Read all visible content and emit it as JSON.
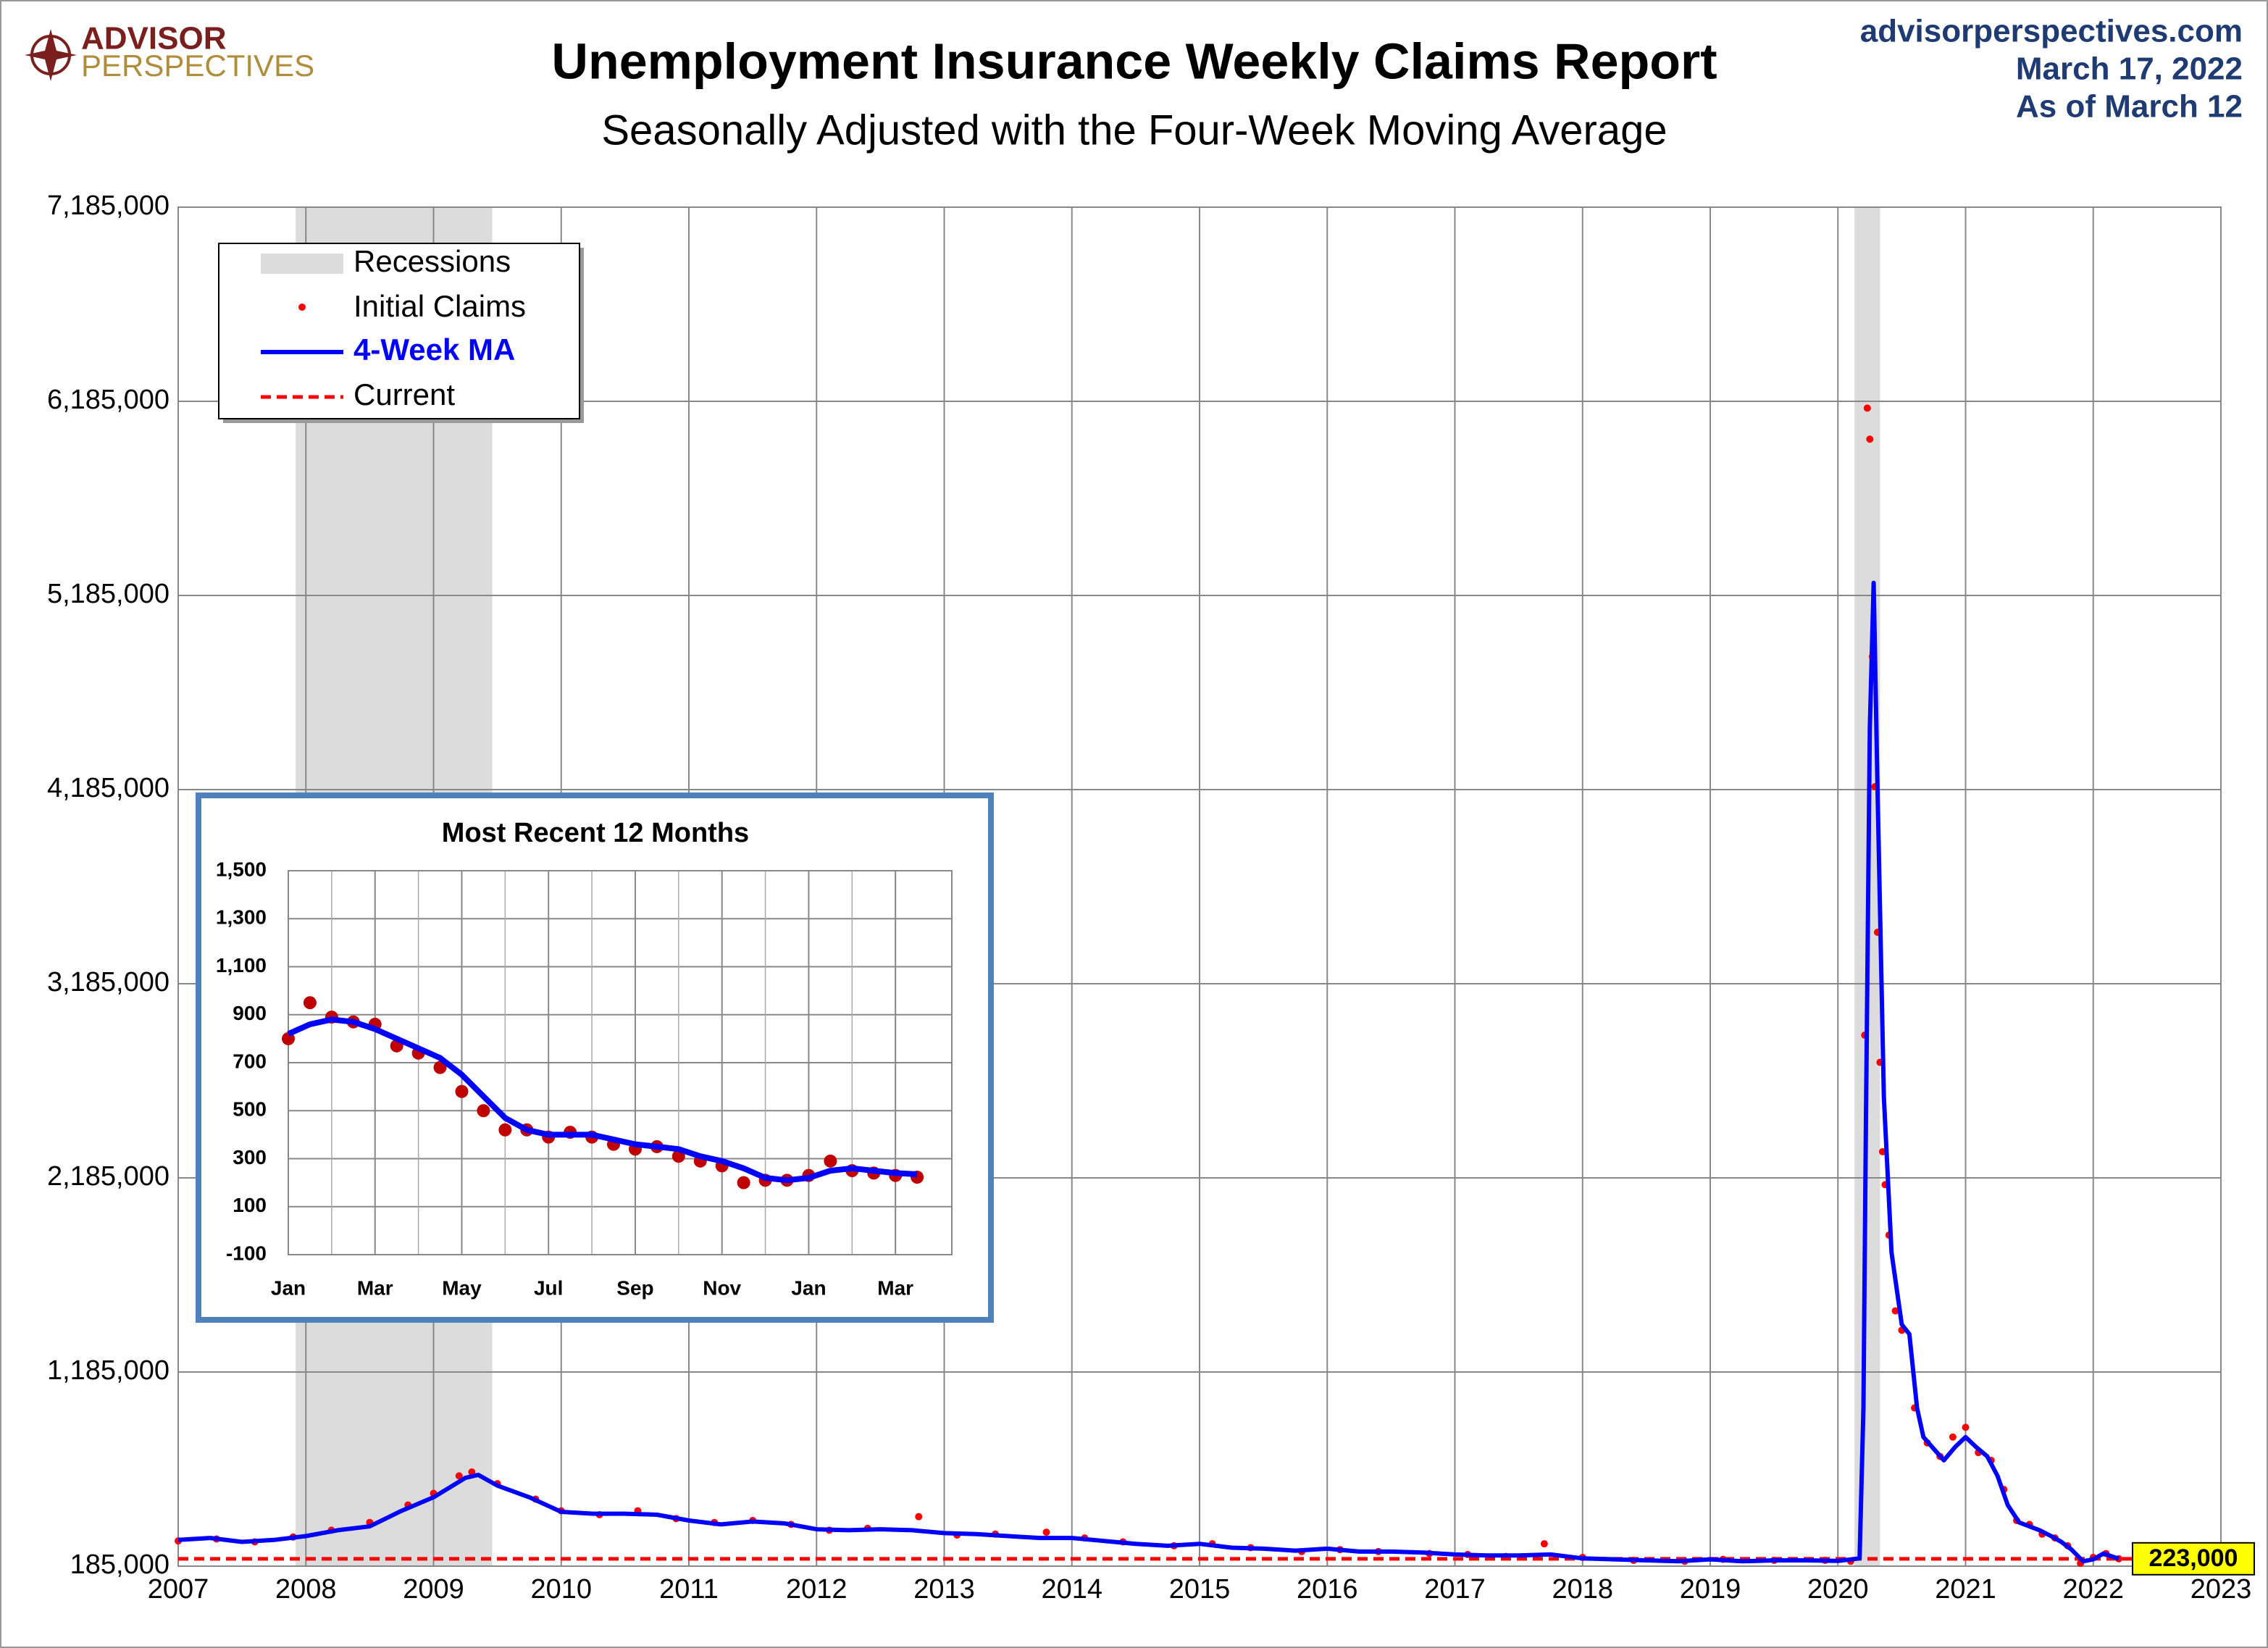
{
  "header": {
    "logo_top": "ADVISOR",
    "logo_bottom": "PERSPECTIVES",
    "site": "advisorperspectives.com",
    "date": "March 17, 2022",
    "as_of": "As of March 12"
  },
  "chart_data": [
    {
      "type": "line",
      "title": "Unemployment Insurance Weekly Claims Report",
      "subtitle": "Seasonally Adjusted with the Four-Week Moving Average",
      "xlim": [
        2007,
        2023
      ],
      "xticks": [
        2007,
        2008,
        2009,
        2010,
        2011,
        2012,
        2013,
        2014,
        2015,
        2016,
        2017,
        2018,
        2019,
        2020,
        2021,
        2022,
        2023
      ],
      "ylim": [
        185000,
        7185000
      ],
      "yticks": [
        {
          "value": 185000,
          "label": "185,000"
        },
        {
          "value": 1185000,
          "label": "1,185,000"
        },
        {
          "value": 2185000,
          "label": "2,185,000"
        },
        {
          "value": 3185000,
          "label": "3,185,000"
        },
        {
          "value": 4185000,
          "label": "4,185,000"
        },
        {
          "value": 5185000,
          "label": "5,185,000"
        },
        {
          "value": 6185000,
          "label": "6,185,000"
        },
        {
          "value": 7185000,
          "label": "7,185,000"
        }
      ],
      "grid": true,
      "recession_label": "Recessions",
      "recession_color": "#dcdcdc",
      "recessions": [
        [
          2007.92,
          2009.46
        ],
        [
          2020.13,
          2020.33
        ]
      ],
      "current": {
        "name": "Current",
        "value": 223000,
        "value_label": "223,000",
        "color": "#ff0000"
      },
      "series": [
        {
          "name": "Initial Claims",
          "color": "#ff0000",
          "marker": "dot",
          "x": [
            2007.0,
            2007.3,
            2007.6,
            2007.9,
            2008.2,
            2008.5,
            2008.8,
            2009.0,
            2009.2,
            2009.3,
            2009.5,
            2009.8,
            2010.0,
            2010.3,
            2010.6,
            2010.9,
            2011.2,
            2011.5,
            2011.8,
            2012.1,
            2012.4,
            2012.8,
            2013.1,
            2013.4,
            2013.8,
            2014.1,
            2014.4,
            2014.8,
            2015.1,
            2015.4,
            2015.8,
            2016.1,
            2016.4,
            2016.8,
            2017.1,
            2017.4,
            2017.7,
            2018.0,
            2018.4,
            2018.8,
            2019.1,
            2019.5,
            2019.9,
            2020.1,
            2020.21,
            2020.23,
            2020.25,
            2020.27,
            2020.29,
            2020.31,
            2020.33,
            2020.35,
            2020.37,
            2020.4,
            2020.45,
            2020.5,
            2020.6,
            2020.7,
            2020.8,
            2020.9,
            2021.0,
            2021.1,
            2021.2,
            2021.3,
            2021.4,
            2021.5,
            2021.6,
            2021.7,
            2021.8,
            2021.9,
            2022.0,
            2022.1,
            2022.2
          ],
          "values": [
            315000,
            325000,
            310000,
            335000,
            370000,
            410000,
            500000,
            560000,
            650000,
            670000,
            610000,
            530000,
            470000,
            450000,
            470000,
            430000,
            410000,
            420000,
            400000,
            370000,
            380000,
            440000,
            345000,
            350000,
            360000,
            330000,
            310000,
            290000,
            300000,
            280000,
            260000,
            270000,
            260000,
            250000,
            245000,
            235000,
            300000,
            230000,
            215000,
            210000,
            220000,
            215000,
            215000,
            210000,
            2920000,
            6150000,
            5990000,
            4870000,
            4200000,
            3450000,
            2780000,
            2320000,
            2150000,
            1890000,
            1500000,
            1400000,
            1000000,
            820000,
            750000,
            850000,
            900000,
            770000,
            730000,
            580000,
            420000,
            400000,
            350000,
            330000,
            290000,
            200000,
            230000,
            250000,
            223000
          ]
        },
        {
          "name": "4-Week MA",
          "color": "#0000ff",
          "marker": "line",
          "x": [
            2007.0,
            2007.25,
            2007.5,
            2007.75,
            2008.0,
            2008.25,
            2008.5,
            2008.75,
            2009.0,
            2009.25,
            2009.35,
            2009.5,
            2009.75,
            2010.0,
            2010.25,
            2010.5,
            2010.75,
            2011.0,
            2011.25,
            2011.5,
            2011.75,
            2012.0,
            2012.25,
            2012.5,
            2012.75,
            2013.0,
            2013.25,
            2013.5,
            2013.75,
            2014.0,
            2014.25,
            2014.5,
            2014.75,
            2015.0,
            2015.25,
            2015.5,
            2015.75,
            2016.0,
            2016.25,
            2016.5,
            2016.75,
            2017.0,
            2017.25,
            2017.5,
            2017.75,
            2018.0,
            2018.25,
            2018.5,
            2018.75,
            2019.0,
            2019.25,
            2019.5,
            2019.75,
            2020.0,
            2020.17,
            2020.2,
            2020.22,
            2020.25,
            2020.28,
            2020.31,
            2020.36,
            2020.42,
            2020.5,
            2020.56,
            2020.62,
            2020.67,
            2020.75,
            2020.83,
            2020.92,
            2021.0,
            2021.08,
            2021.17,
            2021.25,
            2021.33,
            2021.42,
            2021.5,
            2021.58,
            2021.67,
            2021.75,
            2021.83,
            2021.92,
            2022.0,
            2022.08,
            2022.2
          ],
          "values": [
            320000,
            330000,
            310000,
            320000,
            340000,
            370000,
            390000,
            470000,
            540000,
            640000,
            655000,
            600000,
            540000,
            465000,
            455000,
            455000,
            450000,
            420000,
            400000,
            415000,
            405000,
            375000,
            370000,
            375000,
            370000,
            355000,
            350000,
            340000,
            330000,
            330000,
            315000,
            300000,
            290000,
            300000,
            280000,
            275000,
            265000,
            275000,
            260000,
            260000,
            255000,
            245000,
            240000,
            240000,
            245000,
            225000,
            220000,
            215000,
            210000,
            220000,
            210000,
            215000,
            215000,
            212000,
            225000,
            1000000,
            2500000,
            4500000,
            5250000,
            4200000,
            2600000,
            1800000,
            1430000,
            1380000,
            1000000,
            850000,
            790000,
            730000,
            800000,
            850000,
            800000,
            750000,
            650000,
            500000,
            410000,
            390000,
            370000,
            340000,
            310000,
            270000,
            210000,
            220000,
            250000,
            223000
          ]
        }
      ]
    },
    {
      "type": "line",
      "title": "Most Recent 12 Months",
      "xlim": [
        0,
        15.3
      ],
      "xticks": [
        {
          "value": 0,
          "label": "Jan"
        },
        {
          "value": 2,
          "label": "Mar"
        },
        {
          "value": 4,
          "label": "May"
        },
        {
          "value": 6,
          "label": "Jul"
        },
        {
          "value": 8,
          "label": "Sep"
        },
        {
          "value": 10,
          "label": "Nov"
        },
        {
          "value": 12,
          "label": "Jan"
        },
        {
          "value": 14,
          "label": "Mar"
        }
      ],
      "ylim": [
        -100,
        1500
      ],
      "yticks": [
        -100,
        100,
        300,
        500,
        700,
        900,
        {
          "value": 1100,
          "label": "1,100"
        },
        {
          "value": 1300,
          "label": "1,300"
        },
        {
          "value": 1500,
          "label": "1,500"
        }
      ],
      "grid": true,
      "series": [
        {
          "color": "#c00000",
          "marker": "dot",
          "x": [
            0,
            0.5,
            1,
            1.5,
            2,
            2.5,
            3,
            3.5,
            4,
            4.5,
            5,
            5.5,
            6,
            6.5,
            7,
            7.5,
            8,
            8.5,
            9,
            9.5,
            10,
            10.5,
            11,
            11.5,
            12,
            12.5,
            13,
            13.5,
            14,
            14.5
          ],
          "values": [
            800,
            950,
            890,
            870,
            860,
            770,
            740,
            680,
            580,
            500,
            420,
            420,
            390,
            410,
            390,
            360,
            340,
            350,
            310,
            290,
            270,
            200,
            210,
            210,
            230,
            290,
            250,
            240,
            230,
            223
          ]
        },
        {
          "color": "#0000ff",
          "marker": "line",
          "x": [
            0,
            0.5,
            1,
            1.5,
            2,
            2.5,
            3,
            3.5,
            4,
            4.5,
            5,
            5.5,
            6,
            6.5,
            7,
            7.5,
            8,
            8.5,
            9,
            9.5,
            10,
            10.5,
            11,
            11.5,
            12,
            12.5,
            13,
            13.5,
            14,
            14.5
          ],
          "values": [
            820,
            860,
            880,
            870,
            840,
            800,
            760,
            720,
            650,
            560,
            470,
            420,
            400,
            400,
            400,
            380,
            360,
            350,
            340,
            310,
            290,
            260,
            220,
            210,
            220,
            250,
            260,
            250,
            240,
            235
          ]
        }
      ]
    }
  ]
}
